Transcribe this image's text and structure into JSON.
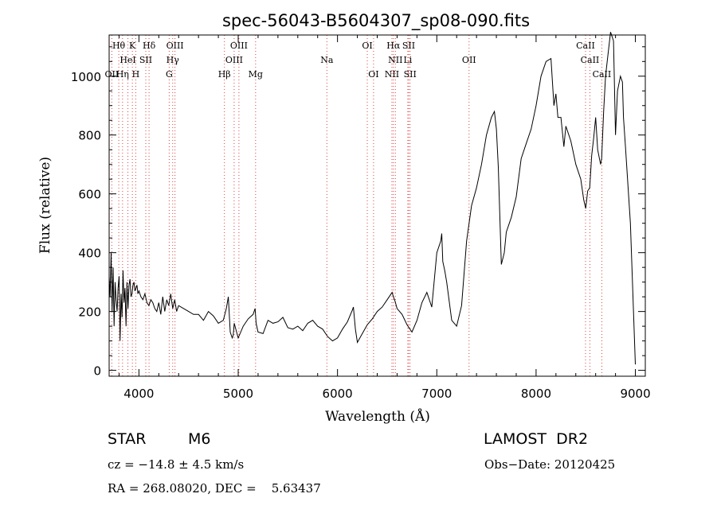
{
  "chart_data": {
    "type": "line",
    "title": "spec-56043-B5604307_sp08-090.fits",
    "xlabel": "Wavelength (Å)",
    "ylabel": "Flux (relative)",
    "xlim": [
      3700,
      9100
    ],
    "ylim": [
      -20,
      1140
    ],
    "xticks": [
      4000,
      5000,
      6000,
      7000,
      8000,
      9000
    ],
    "yticks": [
      0,
      200,
      400,
      600,
      800,
      1000
    ],
    "grid": false,
    "colors": {
      "spectrum": "#000000",
      "line_markers": "#e04040"
    },
    "series": [
      {
        "x": [
          3700,
          3710,
          3720,
          3730,
          3740,
          3750,
          3760,
          3770,
          3780,
          3790,
          3800,
          3810,
          3820,
          3830,
          3840,
          3850,
          3860,
          3870,
          3880,
          3890,
          3900,
          3910,
          3920,
          3930,
          3940,
          3950,
          3960,
          3970,
          3980,
          3990,
          4000,
          4020,
          4040,
          4060,
          4080,
          4100,
          4120,
          4140,
          4160,
          4180,
          4200,
          4220,
          4240,
          4260,
          4280,
          4300,
          4320,
          4340,
          4360,
          4380,
          4400,
          4450,
          4500,
          4550,
          4600,
          4650,
          4700,
          4750,
          4800,
          4850,
          4880,
          4900,
          4920,
          4940,
          4950,
          4960,
          4980,
          5000,
          5050,
          5100,
          5150,
          5170,
          5180,
          5200,
          5250,
          5300,
          5350,
          5400,
          5450,
          5500,
          5550,
          5600,
          5650,
          5700,
          5750,
          5800,
          5850,
          5900,
          5950,
          6000,
          6050,
          6100,
          6150,
          6160,
          6180,
          6200,
          6250,
          6300,
          6350,
          6400,
          6450,
          6500,
          6550,
          6563,
          6580,
          6600,
          6650,
          6700,
          6750,
          6800,
          6850,
          6900,
          6950,
          7000,
          7040,
          7050,
          7060,
          7080,
          7100,
          7150,
          7200,
          7250,
          7300,
          7350,
          7400,
          7450,
          7500,
          7550,
          7580,
          7600,
          7620,
          7650,
          7680,
          7700,
          7750,
          7800,
          7850,
          7900,
          7950,
          8000,
          8050,
          8100,
          8150,
          8180,
          8200,
          8220,
          8250,
          8280,
          8300,
          8350,
          8400,
          8450,
          8480,
          8500,
          8520,
          8540,
          8560,
          8580,
          8600,
          8620,
          8650,
          8660,
          8680,
          8700,
          8720,
          8750,
          8780,
          8800,
          8820,
          8850,
          8870,
          8880,
          8900,
          8950,
          9000
        ],
        "y": [
          320,
          250,
          400,
          200,
          350,
          150,
          300,
          240,
          200,
          280,
          320,
          100,
          260,
          180,
          340,
          230,
          280,
          150,
          300,
          210,
          290,
          310,
          250,
          260,
          290,
          300,
          270,
          280,
          290,
          260,
          270,
          250,
          240,
          260,
          230,
          220,
          240,
          230,
          210,
          200,
          230,
          190,
          250,
          200,
          240,
          220,
          260,
          210,
          240,
          200,
          220,
          210,
          200,
          190,
          190,
          170,
          200,
          185,
          160,
          170,
          210,
          250,
          130,
          110,
          120,
          160,
          135,
          110,
          150,
          175,
          190,
          210,
          160,
          130,
          125,
          170,
          160,
          165,
          180,
          145,
          140,
          150,
          135,
          160,
          170,
          150,
          140,
          115,
          100,
          110,
          140,
          165,
          205,
          215,
          140,
          95,
          125,
          155,
          175,
          200,
          215,
          240,
          265,
          250,
          235,
          210,
          190,
          155,
          130,
          170,
          230,
          265,
          215,
          400,
          440,
          465,
          370,
          340,
          300,
          170,
          150,
          220,
          440,
          560,
          620,
          700,
          800,
          860,
          880,
          820,
          690,
          360,
          400,
          470,
          520,
          590,
          720,
          770,
          820,
          900,
          1000,
          1050,
          1060,
          900,
          940,
          860,
          860,
          760,
          830,
          780,
          700,
          650,
          580,
          550,
          610,
          620,
          730,
          790,
          860,
          750,
          700,
          720,
          880,
          1000,
          1060,
          1150,
          1120,
          800,
          950,
          1000,
          980,
          860,
          760,
          500,
          20
        ]
      }
    ],
    "line_markers": [
      {
        "label": "Hθ",
        "x": 3797,
        "row": 0
      },
      {
        "label": "K",
        "x": 3934,
        "row": 0
      },
      {
        "label": "Hδ",
        "x": 4102,
        "row": 0
      },
      {
        "label": "OIII",
        "x": 4363,
        "row": 0
      },
      {
        "label": "OIII",
        "x": 5007,
        "row": 0
      },
      {
        "label": "OI",
        "x": 6300,
        "row": 0
      },
      {
        "label": "Hα",
        "x": 6563,
        "row": 0
      },
      {
        "label": "SII",
        "x": 6717,
        "row": 0
      },
      {
        "label": "CaII",
        "x": 8498,
        "row": 0
      },
      {
        "label": "HeI",
        "x": 3889,
        "row": 1
      },
      {
        "label": "SII",
        "x": 4069,
        "row": 1
      },
      {
        "label": "Hγ",
        "x": 4340,
        "row": 1
      },
      {
        "label": "OIII",
        "x": 4959,
        "row": 1
      },
      {
        "label": "Na",
        "x": 5893,
        "row": 1
      },
      {
        "label": "NII",
        "x": 6583,
        "row": 1
      },
      {
        "label": "Li",
        "x": 6708,
        "row": 1
      },
      {
        "label": "OII",
        "x": 7325,
        "row": 1
      },
      {
        "label": "CaII",
        "x": 8542,
        "row": 1
      },
      {
        "label": "OII",
        "x": 3727,
        "row": 2
      },
      {
        "label": "Hη",
        "x": 3835,
        "row": 2
      },
      {
        "label": "H",
        "x": 3968,
        "row": 2
      },
      {
        "label": "G",
        "x": 4305,
        "row": 2
      },
      {
        "label": "Hβ",
        "x": 4861,
        "row": 2
      },
      {
        "label": "Mg",
        "x": 5175,
        "row": 2
      },
      {
        "label": "OI",
        "x": 6363,
        "row": 2
      },
      {
        "label": "NII",
        "x": 6548,
        "row": 2
      },
      {
        "label": "SII",
        "x": 6731,
        "row": 2
      },
      {
        "label": "CaII",
        "x": 8662,
        "row": 2
      }
    ]
  },
  "info": {
    "object_class": "STAR",
    "subclass": "M6",
    "survey": "LAMOST  DR2",
    "cz": "cz = −14.8 ± 4.5 km/s",
    "obs_date": "Obs−Date: 20120425",
    "coords": "RA = 268.08020, DEC =    5.63437"
  }
}
